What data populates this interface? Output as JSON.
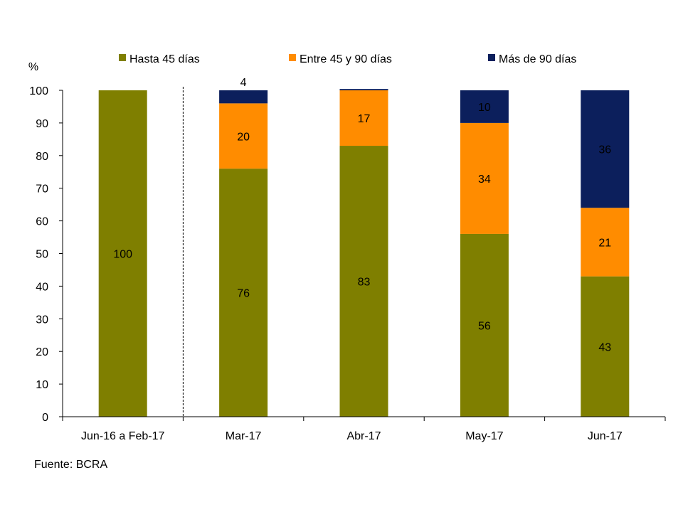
{
  "chart_data": {
    "type": "bar",
    "stacked": true,
    "ylabel": "%",
    "ylim": [
      0,
      100
    ],
    "yticks": [
      0,
      10,
      20,
      30,
      40,
      50,
      60,
      70,
      80,
      90,
      100
    ],
    "categories": [
      "Jun-16 a Feb-17",
      "Mar-17",
      "Abr-17",
      "May-17",
      "Jun-17"
    ],
    "series": [
      {
        "name": "Hasta 45 días",
        "color": "#7f7f00",
        "values": [
          100,
          76,
          83,
          56,
          43
        ],
        "labels": [
          "100",
          "76",
          "83",
          "56",
          "43"
        ]
      },
      {
        "name": "Entre 45 y 90 días",
        "color": "#ff8c00",
        "values": [
          0,
          20,
          17,
          34,
          21
        ],
        "labels": [
          "",
          "20",
          "17",
          "34",
          "21"
        ]
      },
      {
        "name": "Más de 90 días",
        "color": "#0c1f5c",
        "values": [
          0,
          4,
          0.4,
          10,
          36
        ],
        "labels": [
          "",
          "4",
          "",
          "10",
          "36"
        ]
      }
    ],
    "legend_position": "top",
    "separator_after_category": 0
  },
  "source": "Fuente: BCRA"
}
